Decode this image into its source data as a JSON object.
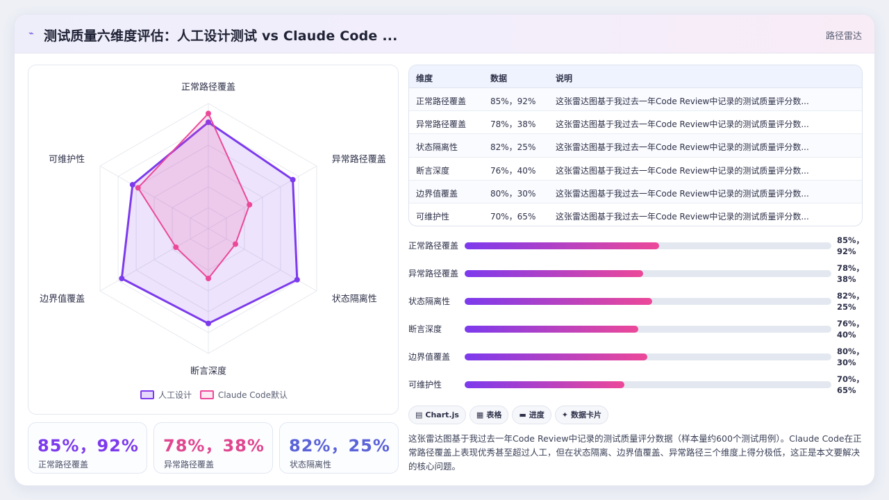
{
  "header": {
    "icon": "sparkle-icon",
    "title": "测试质量六维度评估：人工设计测试 vs Claude Code ...",
    "tag": "路径雷达"
  },
  "colors": {
    "human": "#7c3aed",
    "claude": "#ec4899",
    "accent_blue": "#5b63d8"
  },
  "chart_data": {
    "type": "radar",
    "categories": [
      "正常路径覆盖",
      "异常路径覆盖",
      "状态隔离性",
      "断言深度",
      "边界值覆盖",
      "可维护性"
    ],
    "series": [
      {
        "name": "人工设计",
        "values": [
          85,
          78,
          82,
          76,
          80,
          70
        ],
        "color": "#7c3aed"
      },
      {
        "name": "Claude Code默认",
        "values": [
          92,
          38,
          25,
          40,
          30,
          65
        ],
        "color": "#ec4899"
      }
    ],
    "rlim": [
      0,
      100
    ],
    "grid": true,
    "legend": "bottom"
  },
  "legend": {
    "items": [
      {
        "label": "人工设计"
      },
      {
        "label": "Claude Code默认"
      }
    ]
  },
  "stats": [
    {
      "value": "85%，92%",
      "label": "正常路径覆盖",
      "color": "#7c3aed"
    },
    {
      "value": "78%，38%",
      "label": "异常路径覆盖",
      "color": "#e0468f"
    },
    {
      "value": "82%，25%",
      "label": "状态隔离性",
      "color": "#5b63d8"
    }
  ],
  "table": {
    "headers": [
      "维度",
      "数据",
      "说明"
    ],
    "rows": [
      {
        "dim": "正常路径覆盖",
        "data": "85%，92%",
        "note": "这张雷达图基于我过去一年Code Review中记录的测试质量评分数..."
      },
      {
        "dim": "异常路径覆盖",
        "data": "78%，38%",
        "note": "这张雷达图基于我过去一年Code Review中记录的测试质量评分数..."
      },
      {
        "dim": "状态隔离性",
        "data": "82%，25%",
        "note": "这张雷达图基于我过去一年Code Review中记录的测试质量评分数..."
      },
      {
        "dim": "断言深度",
        "data": "76%，40%",
        "note": "这张雷达图基于我过去一年Code Review中记录的测试质量评分数..."
      },
      {
        "dim": "边界值覆盖",
        "data": "80%，30%",
        "note": "这张雷达图基于我过去一年Code Review中记录的测试质量评分数..."
      },
      {
        "dim": "可维护性",
        "data": "70%，65%",
        "note": "这张雷达图基于我过去一年Code Review中记录的测试质量评分数..."
      }
    ]
  },
  "bars": [
    {
      "label": "正常路径覆盖",
      "value": "85%，92%",
      "fill": 0.53
    },
    {
      "label": "异常路径覆盖",
      "value": "78%，38%",
      "fill": 0.486
    },
    {
      "label": "状态隔离性",
      "value": "82%，25%",
      "fill": 0.511
    },
    {
      "label": "断言深度",
      "value": "76%，40%",
      "fill": 0.473
    },
    {
      "label": "边界值覆盖",
      "value": "80%，30%",
      "fill": 0.498
    },
    {
      "label": "可维护性",
      "value": "70%，65%",
      "fill": 0.436
    }
  ],
  "chips": [
    {
      "icon": "chart-icon",
      "glyph": "▤",
      "label": "Chart.js"
    },
    {
      "icon": "table-icon",
      "glyph": "▦",
      "label": "表格"
    },
    {
      "icon": "progress-icon",
      "glyph": "▬",
      "label": "进度"
    },
    {
      "icon": "card-icon",
      "glyph": "✦",
      "label": "数据卡片"
    }
  ],
  "description": "这张雷达图基于我过去一年Code Review中记录的测试质量评分数据（样本量约600个测试用例）。Claude Code在正常路径覆盖上表现优秀甚至超过人工，但在状态隔离、边界值覆盖、异常路径三个维度上得分极低，这正是本文要解决的核心问题。"
}
